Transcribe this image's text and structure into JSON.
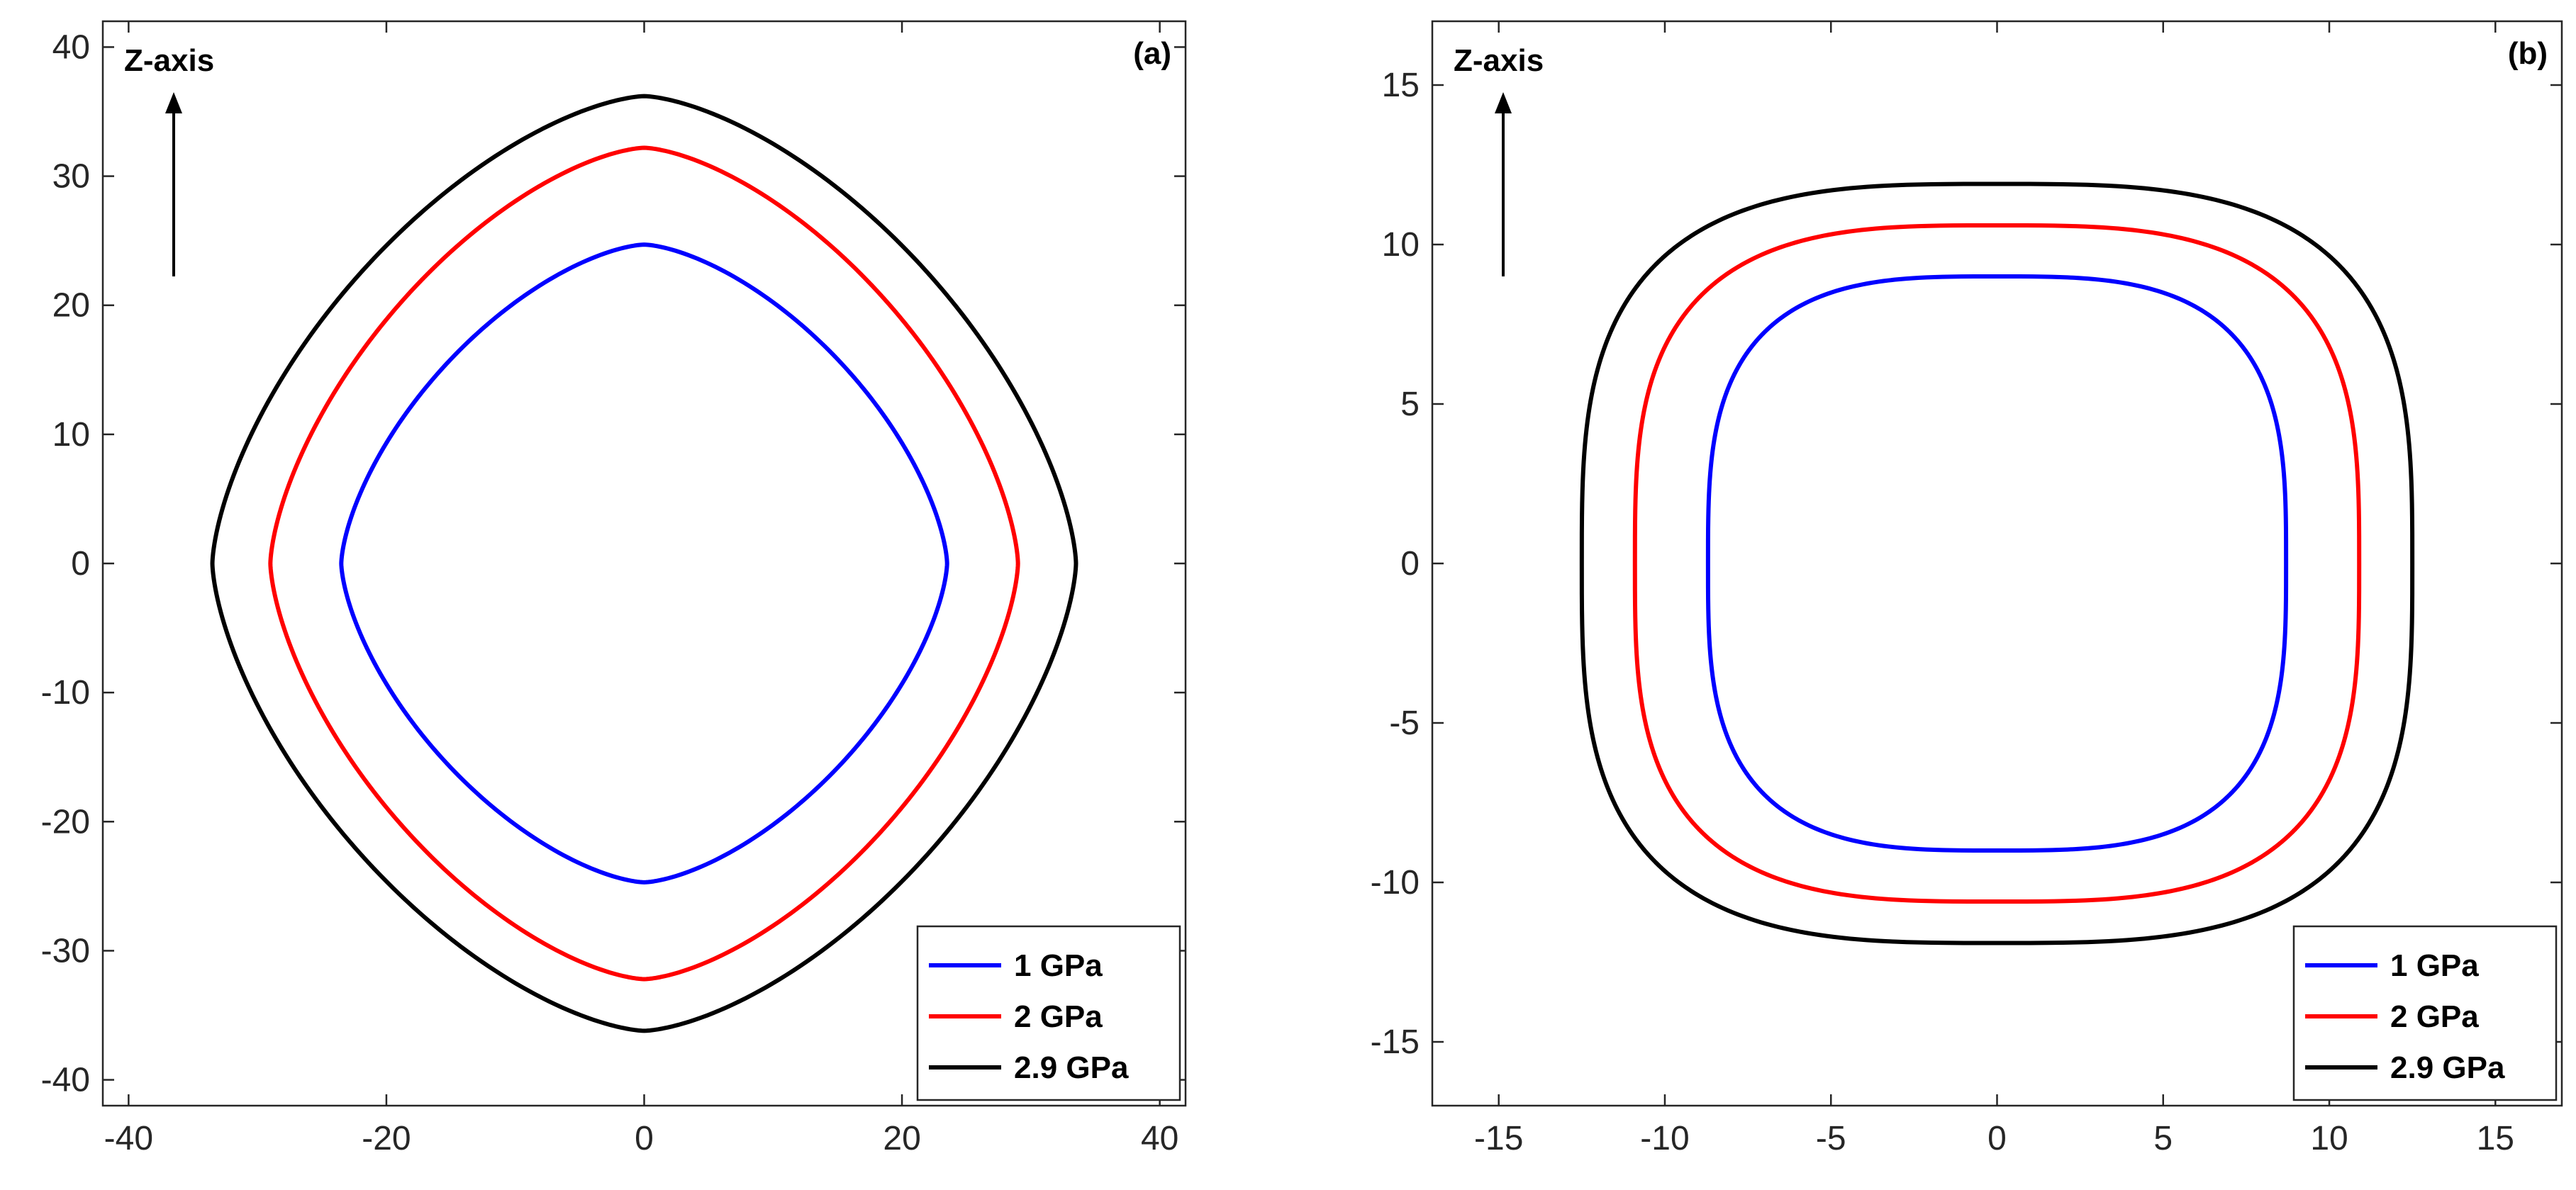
{
  "chart_data": [
    {
      "type": "line",
      "panel_label": "(a)",
      "annotation": "Z-axis",
      "xlim": [
        -42,
        42
      ],
      "ylim": [
        -42,
        42
      ],
      "xticks": [
        -40,
        -20,
        0,
        20,
        40
      ],
      "yticks": [
        -40,
        -30,
        -20,
        -10,
        0,
        10,
        20,
        30,
        40
      ],
      "legend_position": "bottom-right",
      "shape_exponent": 1.55,
      "series": [
        {
          "name": "1 GPa",
          "color": "#0000ff",
          "x_left": -23.5,
          "x_right": 23.5,
          "y_top": 24.7,
          "y_bottom": -24.7
        },
        {
          "name": "2 GPa",
          "color": "#ff0000",
          "x_left": -29.0,
          "x_right": 29.0,
          "y_top": 32.2,
          "y_bottom": -32.2
        },
        {
          "name": "2.9 GPa",
          "color": "#000000",
          "x_left": -33.5,
          "x_right": 33.5,
          "y_top": 36.2,
          "y_bottom": -36.2
        }
      ]
    },
    {
      "type": "line",
      "panel_label": "(b)",
      "annotation": "Z-axis",
      "xlim": [
        -17,
        17
      ],
      "ylim": [
        -17,
        17
      ],
      "xticks": [
        -15,
        -10,
        -5,
        0,
        5,
        10,
        15
      ],
      "yticks": [
        -15,
        -10,
        -5,
        0,
        5,
        10,
        15
      ],
      "legend_position": "bottom-right",
      "shape_exponent": 3.2,
      "series": [
        {
          "name": "1 GPa",
          "color": "#0000ff",
          "x_left": -8.7,
          "x_right": 8.7,
          "y_top": 9.0,
          "y_bottom": -9.0
        },
        {
          "name": "2 GPa",
          "color": "#ff0000",
          "x_left": -10.9,
          "x_right": 10.9,
          "y_top": 10.6,
          "y_bottom": -10.6
        },
        {
          "name": "2.9 GPa",
          "color": "#000000",
          "x_left": -12.5,
          "x_right": 12.5,
          "y_top": 11.9,
          "y_bottom": -11.9
        }
      ]
    }
  ]
}
